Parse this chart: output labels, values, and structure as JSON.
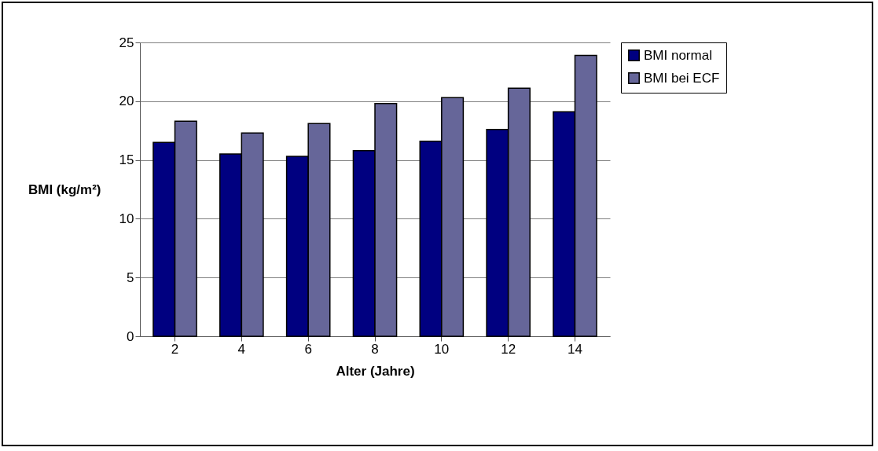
{
  "chart_data": {
    "type": "bar",
    "xlabel": "Alter (Jahre)",
    "ylabel": "BMI (kg/m²)",
    "categories": [
      "2",
      "4",
      "6",
      "8",
      "10",
      "12",
      "14"
    ],
    "series": [
      {
        "name": "BMI normal",
        "color": "#000080",
        "values": [
          16.5,
          15.5,
          15.3,
          15.8,
          16.6,
          17.6,
          19.1
        ]
      },
      {
        "name": "BMI bei ECF",
        "color": "#666699",
        "values": [
          18.3,
          17.3,
          18.1,
          19.8,
          20.3,
          21.1,
          23.9
        ]
      }
    ],
    "ylim": [
      0,
      25
    ],
    "yticks": [
      0,
      5,
      10,
      15,
      20,
      25
    ],
    "grid": "y",
    "legend": "right"
  }
}
